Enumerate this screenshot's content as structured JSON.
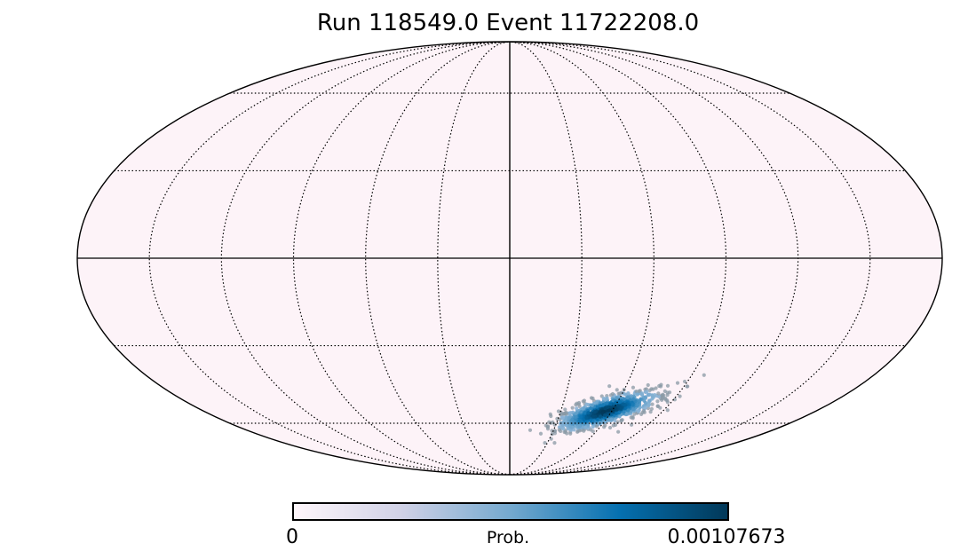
{
  "chart_data": {
    "type": "heatmap",
    "projection": "mollweide",
    "title": "Run 118549.0 Event 11722208.0",
    "graticule": {
      "meridian_step_deg": 30,
      "parallel_step_deg": 30,
      "style": "dotted",
      "center_lines": "solid"
    },
    "background_color": "#fdf3f8",
    "colormap": [
      "#fff7fb",
      "#d0d1e6",
      "#74a9cf",
      "#0570b0",
      "#023858"
    ],
    "colorbar": {
      "label": "Prob.",
      "min_label": "0",
      "max_label": "0.00107673",
      "min": 0,
      "max": 0.00107673
    },
    "hotspot": {
      "center_lon_deg": -56,
      "center_lat_deg": -55,
      "extent_lon_deg": 34,
      "extent_lat_deg": 16,
      "peak_prob": 0.00107673
    }
  }
}
